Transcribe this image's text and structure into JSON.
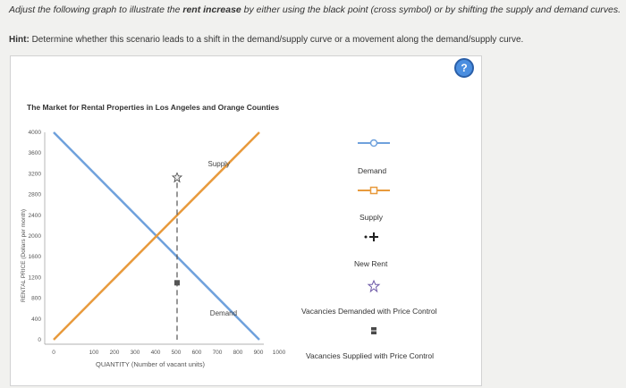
{
  "instruction": {
    "pre": "Adjust the following graph to illustrate the",
    "bold": "rent increase",
    "post": "by either using the black point (cross symbol) or by shifting the supply and demand curves."
  },
  "hint": {
    "label": "Hint:",
    "text": "Determine whether this scenario leads to a shift in the demand/supply curve or a movement along the demand/supply curve."
  },
  "help_label": "?",
  "chart_data": {
    "type": "line",
    "title": "The Market for Rental Properties in Los Angeles and Orange Counties",
    "xlabel": "QUANTITY (Number of vacant units)",
    "ylabel": "RENTAL PRICE (Dollars per month)",
    "xlim": [
      0,
      1000
    ],
    "ylim": [
      0,
      4000
    ],
    "x_ticks": [
      "0",
      "100",
      "200",
      "300",
      "400",
      "500",
      "600",
      "700",
      "800",
      "900",
      "1000"
    ],
    "y_ticks": [
      "0",
      "400",
      "800",
      "1200",
      "1600",
      "2000",
      "2400",
      "2800",
      "3200",
      "3600",
      "4000"
    ],
    "series": [
      {
        "name": "Demand",
        "color": "#6fa1dc",
        "x": [
          0,
          1000
        ],
        "y": [
          4000,
          0
        ]
      },
      {
        "name": "Supply",
        "color": "#e89a3c",
        "x": [
          0,
          1000
        ],
        "y": [
          0,
          4000
        ]
      }
    ],
    "price_control": {
      "x": 600,
      "y_top": 3200,
      "y_bottom": 0,
      "color": "#555555"
    }
  },
  "legend": [
    {
      "label": "Demand",
      "icon": "circle-line-icon",
      "color": "#6fa1dc"
    },
    {
      "label": "Supply",
      "icon": "square-line-icon",
      "color": "#e89a3c"
    },
    {
      "label": "New Rent",
      "icon": "cross-point-icon",
      "color": "#222222"
    },
    {
      "label": "Vacancies Demanded with Price Control",
      "icon": "star-point-icon",
      "color": "#6f5aa8"
    },
    {
      "label": "Vacancies Supplied with Price Control",
      "icon": "square-point-icon",
      "color": "#4a4a4a"
    }
  ]
}
